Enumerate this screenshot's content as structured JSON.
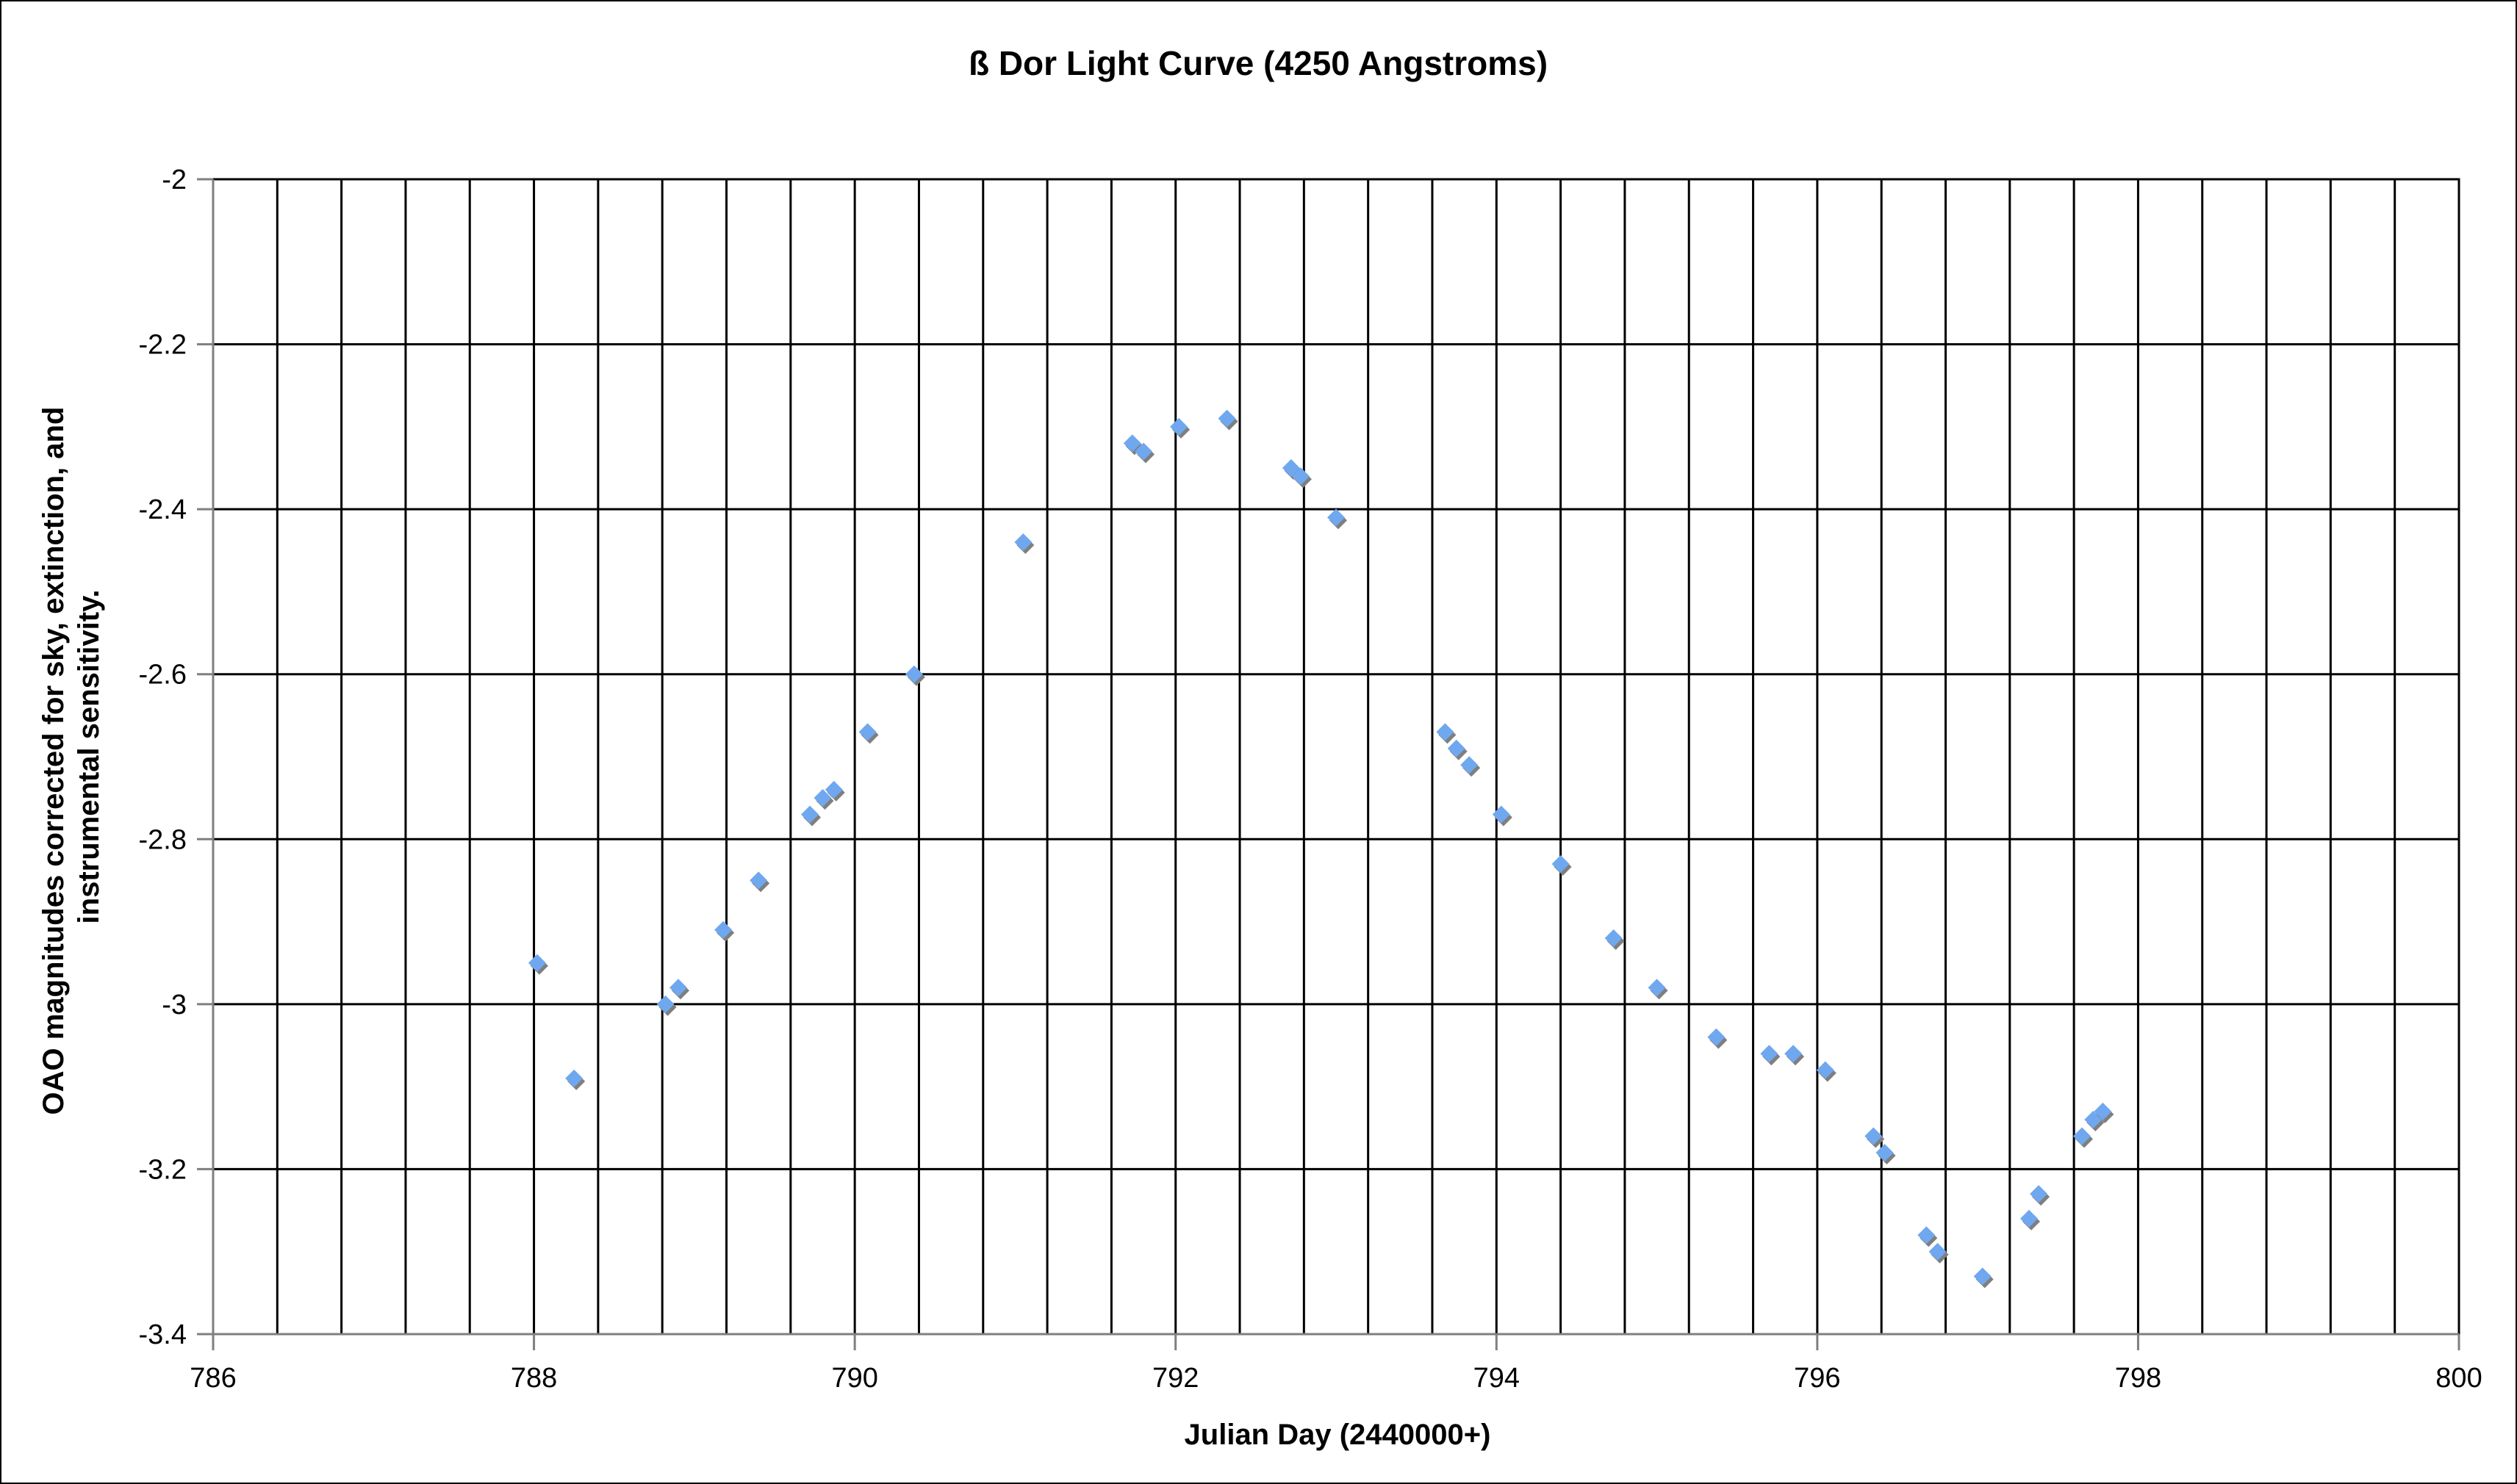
{
  "chart_data": {
    "type": "scatter",
    "title": "ß Dor  Light Curve (4250 Angstroms)",
    "xlabel": "Julian Day (2440000+)",
    "ylabel_lines": [
      "OAO magnitudes corrected for sky, extinction, and",
      "instrumental sensitivity."
    ],
    "xlim": [
      786,
      800
    ],
    "ylim": [
      -3.4,
      -2
    ],
    "x_ticks": [
      786,
      788,
      790,
      792,
      794,
      796,
      798,
      800
    ],
    "x_tick_labels": [
      "786",
      "788",
      "790",
      "792",
      "794",
      "796",
      "798",
      "800"
    ],
    "y_ticks": [
      -2,
      -2.2,
      -2.4,
      -2.6,
      -2.8,
      -3,
      -3.2,
      -3.4
    ],
    "y_tick_labels": [
      "-2",
      "-2.2",
      "-2.4",
      "-2.6",
      "-2.8",
      "-3",
      "-3.2",
      "-3.4"
    ],
    "x_gridline_step": 0.4,
    "grid": true,
    "legend": "none",
    "marker": "diamond",
    "colors": {
      "marker": "#6fa8ef",
      "marker_shadow": "#7f7f7f",
      "grid": "#000000",
      "axis": "#7f7f7f"
    },
    "points": [
      {
        "x": 788.02,
        "y": -2.95
      },
      {
        "x": 788.25,
        "y": -3.09
      },
      {
        "x": 788.82,
        "y": -3.0
      },
      {
        "x": 788.9,
        "y": -2.98
      },
      {
        "x": 789.18,
        "y": -2.91
      },
      {
        "x": 789.4,
        "y": -2.85
      },
      {
        "x": 789.72,
        "y": -2.77
      },
      {
        "x": 789.8,
        "y": -2.75
      },
      {
        "x": 789.87,
        "y": -2.74
      },
      {
        "x": 790.08,
        "y": -2.67
      },
      {
        "x": 790.37,
        "y": -2.6
      },
      {
        "x": 791.05,
        "y": -2.44
      },
      {
        "x": 791.73,
        "y": -2.32
      },
      {
        "x": 791.8,
        "y": -2.33
      },
      {
        "x": 792.02,
        "y": -2.3
      },
      {
        "x": 792.32,
        "y": -2.29
      },
      {
        "x": 792.72,
        "y": -2.35
      },
      {
        "x": 792.78,
        "y": -2.36
      },
      {
        "x": 793.0,
        "y": -2.41
      },
      {
        "x": 793.68,
        "y": -2.67
      },
      {
        "x": 793.75,
        "y": -2.69
      },
      {
        "x": 793.83,
        "y": -2.71
      },
      {
        "x": 794.03,
        "y": -2.77
      },
      {
        "x": 794.4,
        "y": -2.83
      },
      {
        "x": 794.73,
        "y": -2.92
      },
      {
        "x": 795.0,
        "y": -2.98
      },
      {
        "x": 795.37,
        "y": -3.04
      },
      {
        "x": 795.7,
        "y": -3.06
      },
      {
        "x": 795.85,
        "y": -3.06
      },
      {
        "x": 796.05,
        "y": -3.08
      },
      {
        "x": 796.35,
        "y": -3.16
      },
      {
        "x": 796.42,
        "y": -3.18
      },
      {
        "x": 796.68,
        "y": -3.28
      },
      {
        "x": 796.75,
        "y": -3.3
      },
      {
        "x": 797.03,
        "y": -3.33
      },
      {
        "x": 797.32,
        "y": -3.26
      },
      {
        "x": 797.38,
        "y": -3.23
      },
      {
        "x": 797.65,
        "y": -3.16
      },
      {
        "x": 797.72,
        "y": -3.14
      },
      {
        "x": 797.78,
        "y": -3.13
      }
    ]
  }
}
